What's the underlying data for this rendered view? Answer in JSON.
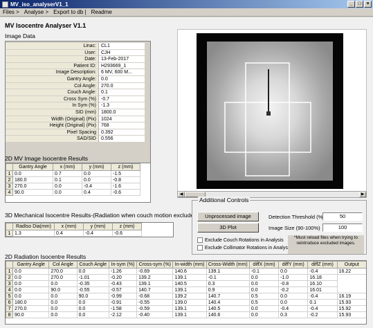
{
  "window": {
    "title": "MV_iso_analyserV1_1"
  },
  "window_buttons": {
    "minimize": "_",
    "maximize": "□",
    "close": "×"
  },
  "menu": [
    "Files >",
    "Analyse >",
    "Export to db |",
    "Readme"
  ],
  "app_title": "MV Isocentre Analyser V1.1",
  "image_data": {
    "heading": "Image Data",
    "rows": [
      {
        "label": "Linac:",
        "value": "CL1"
      },
      {
        "label": "User:",
        "value": "CJH"
      },
      {
        "label": "Date:",
        "value": "13-Feb-2017"
      },
      {
        "label": "Patient ID:",
        "value": "H293669_1"
      },
      {
        "label": "Image Description:",
        "value": "6 MV, 600 M..."
      },
      {
        "label": "Gantry Angle:",
        "value": "0.0"
      },
      {
        "label": "Col Angle:",
        "value": "270.0"
      },
      {
        "label": "Couch Angle:",
        "value": "0.1"
      },
      {
        "label": "Cross Sym (%)",
        "value": "-0.7"
      },
      {
        "label": "In Sym (%)",
        "value": "-1.3"
      },
      {
        "label": "SID (mm)",
        "value": "1800.0"
      },
      {
        "label": "Width (Original) (Pix)",
        "value": "1024"
      },
      {
        "label": "Height (Original) (Pix)",
        "value": "768"
      },
      {
        "label": "Pixel Spacing",
        "value": "0.392"
      },
      {
        "label": "SAD/SID",
        "value": "0.556"
      }
    ]
  },
  "mv_image_results": {
    "heading": "2D MV Image Isocentre Results",
    "columns": [
      "Gantry Angle",
      "x (mm)",
      "y (mm)",
      "z (mm)"
    ],
    "rows": [
      [
        "1",
        "0.0",
        "0.7",
        "0.0",
        "-1.5"
      ],
      [
        "2",
        "180.0",
        "0.1",
        "0.0",
        "-0.8"
      ],
      [
        "3",
        "270.0",
        "0.0",
        "-0.4",
        "-1.6"
      ],
      [
        "4",
        "90.0",
        "0.0",
        "0.4",
        "-0.6"
      ]
    ]
  },
  "mechanical_results": {
    "heading": "3D Mechanical Isocentre Results-(Radiation when couch motion excluded)",
    "columns": [
      "RadIso Dia(mm)",
      "x (mm)",
      "y (mm)",
      "z (mm)"
    ],
    "rows": [
      [
        "1",
        "1.3",
        "0.4",
        "-0.4",
        "-0.6"
      ]
    ]
  },
  "additional_controls": {
    "heading": "Additional Controls",
    "unprocessed_button": "Unprocessed image",
    "plot_button": "3D Plot",
    "threshold_label": "Detection Threshold (%)",
    "threshold_value": "50",
    "image_size_label": "Image Size (90-100%)",
    "image_size_value": "100",
    "exclude_couch": "Exclude Couch Rotations in Analysis",
    "exclude_collimator": "Exclude Collimator Rotations in Analysis",
    "note": "*Must reload files when trying to reintroduce excluded images."
  },
  "radiation_results": {
    "heading": "2D Radiation Isocentre Results",
    "columns": [
      "Gantry Angle",
      "Col Angle",
      "Couch Angle",
      "In-sym (%)",
      "Cross-sym (%)",
      "In-width (mm)",
      "Cross-Width (mm)",
      "diffX (mm)",
      "diffY (mm)",
      "diffZ (mm)",
      "Output"
    ],
    "rows": [
      [
        "1",
        "0.0",
        "270.0",
        "0.0",
        "-1.26",
        "-0.69",
        "140.6",
        "139.1",
        "-0.1",
        "0.0",
        "-0.4",
        "16.22"
      ],
      [
        "2",
        "0.0",
        "270.0",
        "-1.01",
        "-0.20",
        "139.2",
        "139.1",
        "-0.1",
        "0.0",
        "-1.0",
        "16.18"
      ],
      [
        "3",
        "0.0",
        "0.0",
        "-0.35",
        "-0.43",
        "139.1",
        "140.5",
        "0.3",
        "0.0",
        "-0.8",
        "16.10"
      ],
      [
        "4",
        "0.0",
        "90.0",
        "-0.55",
        "-0.57",
        "140.7",
        "139.1",
        "0.9",
        "0.0",
        "-0.2",
        "16.01"
      ],
      [
        "5",
        "0.0",
        "0.0",
        "90.0",
        "-0.99",
        "-0.68",
        "139.2",
        "140.7",
        "0.5",
        "0.0",
        "-0.4",
        "16.19"
      ],
      [
        "6",
        "180.0",
        "0.0",
        "0.0",
        "-0.91",
        "-0.55",
        "139.0",
        "140.4",
        "0.5",
        "0.0",
        "0.1",
        "15.93"
      ],
      [
        "7",
        "270.0",
        "0.0",
        "0.0",
        "-1.58",
        "-0.59",
        "139.1",
        "140.5",
        "0.0",
        "-0.4",
        "-0.4",
        "15.92"
      ],
      [
        "8",
        "90.0",
        "0.0",
        "0.0",
        "-2.12",
        "-0.40",
        "139.1",
        "140.6",
        "0.0",
        "0.3",
        "-0.2",
        "15.93"
      ]
    ]
  }
}
